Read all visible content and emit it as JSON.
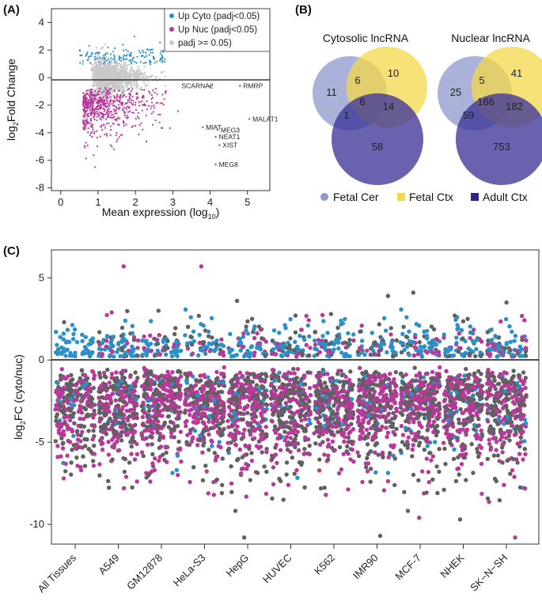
{
  "colors": {
    "cyto": "#2a90c8",
    "nuc": "#b8399a",
    "ns": "#c8c8c8",
    "ns_dark": "#606060",
    "fetal_cer": "#8e98cc",
    "fetal_ctx": "#f3d84a",
    "adult_ctx": "#3d3699"
  },
  "panel_a": {
    "panel_label": "(A)",
    "chart_data": {
      "type": "scatter",
      "xlabel": "Mean expression (log10)",
      "ylabel": "log2Fold Change",
      "xlabel_main": "Mean expression (log",
      "xlabel_sub": "10",
      "xlabel_end": ")",
      "ylabel_pre": "log",
      "ylabel_sub": "2",
      "ylabel_post": "Fold Change",
      "xlim": [
        -0.25,
        5.6
      ],
      "ylim": [
        -8.2,
        5.0
      ],
      "xticks": [
        "0",
        "1",
        "2",
        "3",
        "4",
        "5"
      ],
      "yticks": [
        "4",
        "2",
        "0",
        "-2",
        "-4",
        "-6",
        "-8"
      ],
      "legend": [
        "Up Cyto (padj<0.05)",
        "Up Nuc (padj<0.05)",
        "padj >= 0.05)"
      ],
      "annotations": [
        {
          "text": "SCARNA2",
          "x": 4.0,
          "y": -0.6
        },
        {
          "text": "RMRP",
          "x": 4.8,
          "y": -0.6
        },
        {
          "text": "MALAT1",
          "x": 5.05,
          "y": -3.0
        },
        {
          "text": "MIAT",
          "x": 3.8,
          "y": -3.6
        },
        {
          "text": "MEG3",
          "x": 4.2,
          "y": -3.8
        },
        {
          "text": "NEAT1",
          "x": 4.15,
          "y": -4.3
        },
        {
          "text": "XIST",
          "x": 4.25,
          "y": -4.9
        },
        {
          "text": "MEG8",
          "x": 4.15,
          "y": -6.3
        }
      ]
    }
  },
  "panel_b": {
    "panel_label": "(B)",
    "left_title": "Cytosolic lncRNA",
    "right_title": "Nuclear lncRNA",
    "left_counts": {
      "cer_only": "11",
      "ctx_only": "10",
      "adult_only": "58",
      "cer_ctx": "6",
      "all": "6",
      "ctx_adult": "14",
      "cer_adult": "1"
    },
    "right_counts": {
      "cer_only": "25",
      "ctx_only": "41",
      "adult_only": "753",
      "cer_ctx": "5",
      "all": "166",
      "ctx_adult": "182",
      "cer_adult": "59"
    },
    "legend": [
      "Fetal Cer",
      "Fetal Ctx",
      "Adult Ctx"
    ]
  },
  "panel_c": {
    "panel_label": "(C)",
    "chart_data": {
      "type": "strip",
      "ylabel": "log2FC (cyto/nuc)",
      "ylabel_pre": "log",
      "ylabel_sub": "2",
      "ylabel_post": "FC (cyto/nuc)",
      "ylim": [
        -11.2,
        6.7
      ],
      "yticks": [
        "5",
        "0",
        "-5",
        "-10"
      ],
      "categories": [
        "All Tissues",
        "A549",
        "GM12878",
        "HeLa-S3",
        "HepG",
        "HUVEC",
        "K562",
        "IMR90",
        "MCF-7",
        "NHEK",
        "SK−N−SH"
      ],
      "ranges": [
        {
          "max_cyto": 2.3,
          "min_nuc": -7.2
        },
        {
          "max_cyto": 5.7,
          "min_nuc": -7.8
        },
        {
          "max_cyto": 3.0,
          "min_nuc": -7.4
        },
        {
          "max_cyto": 5.7,
          "min_nuc": -8.2
        },
        {
          "max_cyto": 3.6,
          "min_nuc": -10.8
        },
        {
          "max_cyto": 2.7,
          "min_nuc": -8.5
        },
        {
          "max_cyto": 2.8,
          "min_nuc": -8.2
        },
        {
          "max_cyto": 3.9,
          "min_nuc": -10.7
        },
        {
          "max_cyto": 4.1,
          "min_nuc": -9.6
        },
        {
          "max_cyto": 2.7,
          "min_nuc": -9.7
        },
        {
          "max_cyto": 3.5,
          "min_nuc": -10.8
        }
      ]
    }
  }
}
